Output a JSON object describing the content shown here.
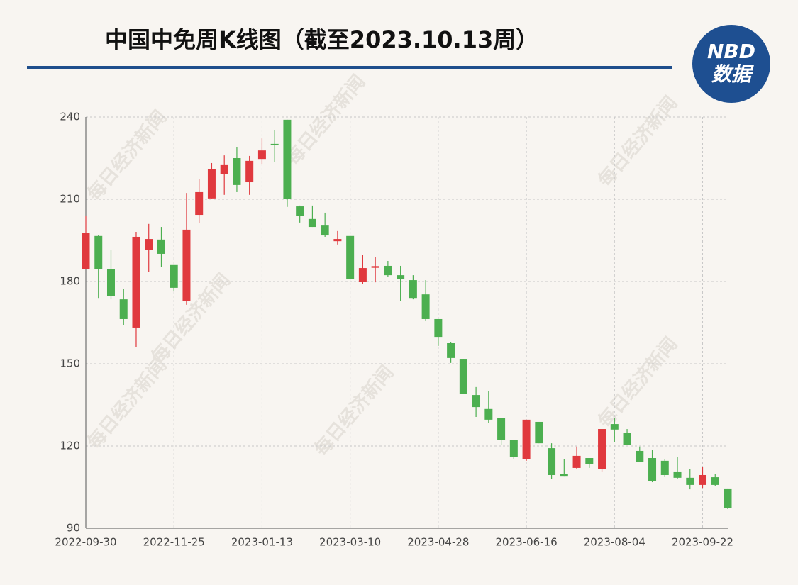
{
  "chart_data": {
    "type": "candlestick",
    "title": "中国中免周K线图（截至2023.10.13周）",
    "logo": {
      "top": "NBD",
      "bottom": "数据"
    },
    "watermark": "每日经济新闻",
    "categories": [
      "2022-09-30",
      null,
      null,
      null,
      null,
      null,
      null,
      "2022-11-25",
      null,
      null,
      null,
      null,
      null,
      null,
      "2023-01-13",
      null,
      null,
      null,
      null,
      null,
      null,
      "2023-03-10",
      null,
      null,
      null,
      null,
      null,
      null,
      "2023-04-28",
      null,
      null,
      null,
      null,
      null,
      null,
      "2023-06-16",
      null,
      null,
      null,
      null,
      null,
      null,
      "2023-08-04",
      null,
      null,
      null,
      null,
      null,
      null,
      "2023-09-22",
      null,
      null
    ],
    "open": [
      184.4,
      196.6,
      184.4,
      173.5,
      163.2,
      191.4,
      195.3,
      186.0,
      173.0,
      204.3,
      210.3,
      219.3,
      225.0,
      216.2,
      224.7,
      230.2,
      239.0,
      207.4,
      202.8,
      200.4,
      194.7,
      196.6,
      180.0,
      185.0,
      185.7,
      182.3,
      180.5,
      175.3,
      166.3,
      157.5,
      151.8,
      138.6,
      133.5,
      130.1,
      122.3,
      115.1,
      128.8,
      119.2,
      109.9,
      112.0,
      115.6,
      111.5,
      128.0,
      124.9,
      118.2,
      115.6,
      114.6,
      110.7,
      108.4,
      105.8,
      108.6,
      104.5
    ],
    "high": [
      203.8,
      197.0,
      191.6,
      177.2,
      198.1,
      201.0,
      199.9,
      186.0,
      212.3,
      217.5,
      223.2,
      226.0,
      228.9,
      225.8,
      232.2,
      235.3,
      239.0,
      207.7,
      207.7,
      205.1,
      198.4,
      196.6,
      189.6,
      189.0,
      187.5,
      185.7,
      182.3,
      180.5,
      166.3,
      158.0,
      151.8,
      141.5,
      140.0,
      130.1,
      122.3,
      129.6,
      128.8,
      121.0,
      115.1,
      119.8,
      115.6,
      126.2,
      130.1,
      126.2,
      119.8,
      118.7,
      115.1,
      115.9,
      111.5,
      112.3,
      109.9,
      104.5
    ],
    "low": [
      184.4,
      174.0,
      173.5,
      164.2,
      156.0,
      183.6,
      185.4,
      176.4,
      171.5,
      201.2,
      210.3,
      211.6,
      212.6,
      211.6,
      222.9,
      223.7,
      207.2,
      201.5,
      199.9,
      196.3,
      193.5,
      181.0,
      179.2,
      179.7,
      181.8,
      172.8,
      173.5,
      165.8,
      156.5,
      150.3,
      138.9,
      130.6,
      128.3,
      120.3,
      115.1,
      114.6,
      121.0,
      108.1,
      109.1,
      111.5,
      112.0,
      110.7,
      121.3,
      120.3,
      114.1,
      106.8,
      108.9,
      107.9,
      104.2,
      104.7,
      105.5,
      97.0
    ],
    "close": [
      197.8,
      184.4,
      174.6,
      166.3,
      196.3,
      195.5,
      190.1,
      177.7,
      198.9,
      212.6,
      221.1,
      222.7,
      215.2,
      224.0,
      227.8,
      229.9,
      210.0,
      203.8,
      199.9,
      196.8,
      195.5,
      181.0,
      184.9,
      185.6,
      182.3,
      181.0,
      174.0,
      166.3,
      159.8,
      152.1,
      138.9,
      134.2,
      129.6,
      122.1,
      115.9,
      129.6,
      121.0,
      109.4,
      109.1,
      116.4,
      113.5,
      126.2,
      126.0,
      120.3,
      114.1,
      107.3,
      109.4,
      108.4,
      105.8,
      109.4,
      105.8,
      97.3
    ],
    "up_color": "#e0393e",
    "down_color": "#4caf50",
    "ylim": [
      90,
      240
    ],
    "yticks": [
      90,
      120,
      150,
      180,
      210,
      240
    ],
    "grid": true
  }
}
